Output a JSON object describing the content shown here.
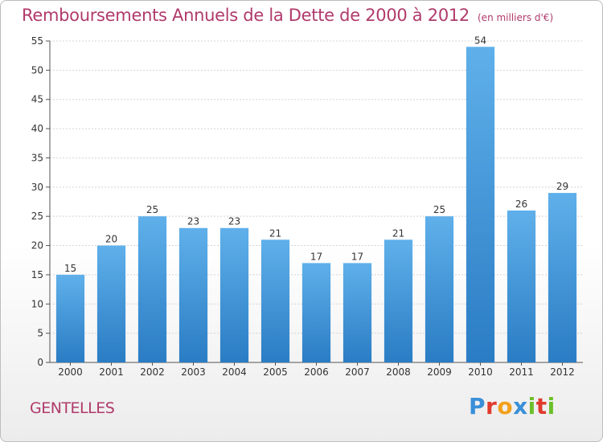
{
  "header": {
    "title": "Remboursements Annuels de la Dette de 2000 à 2012",
    "unit": "(en milliers d'€)"
  },
  "footer": {
    "commune": "GENTELLES",
    "logo_letters": [
      "P",
      "r",
      "o",
      "x",
      "i",
      "t",
      "i"
    ],
    "logo_colors": [
      "#3a8fd8",
      "#e03a2e",
      "#f2a01c",
      "#3a8fd8",
      "#6cbf2a",
      "#e03a2e",
      "#6cbf2a"
    ]
  },
  "chart_data": {
    "type": "bar",
    "categories": [
      "2000",
      "2001",
      "2002",
      "2003",
      "2004",
      "2005",
      "2006",
      "2007",
      "2008",
      "2009",
      "2010",
      "2011",
      "2012"
    ],
    "values": [
      15,
      20,
      25,
      23,
      23,
      21,
      17,
      17,
      21,
      25,
      54,
      26,
      29
    ],
    "title": "Remboursements Annuels de la Dette de 2000 à 2012",
    "xlabel": "",
    "ylabel": "",
    "ylim": [
      0,
      55
    ],
    "yticks": [
      0,
      5,
      10,
      15,
      20,
      25,
      30,
      35,
      40,
      45,
      50,
      55
    ],
    "grid": true,
    "bar_color": "#4a9fe0"
  }
}
